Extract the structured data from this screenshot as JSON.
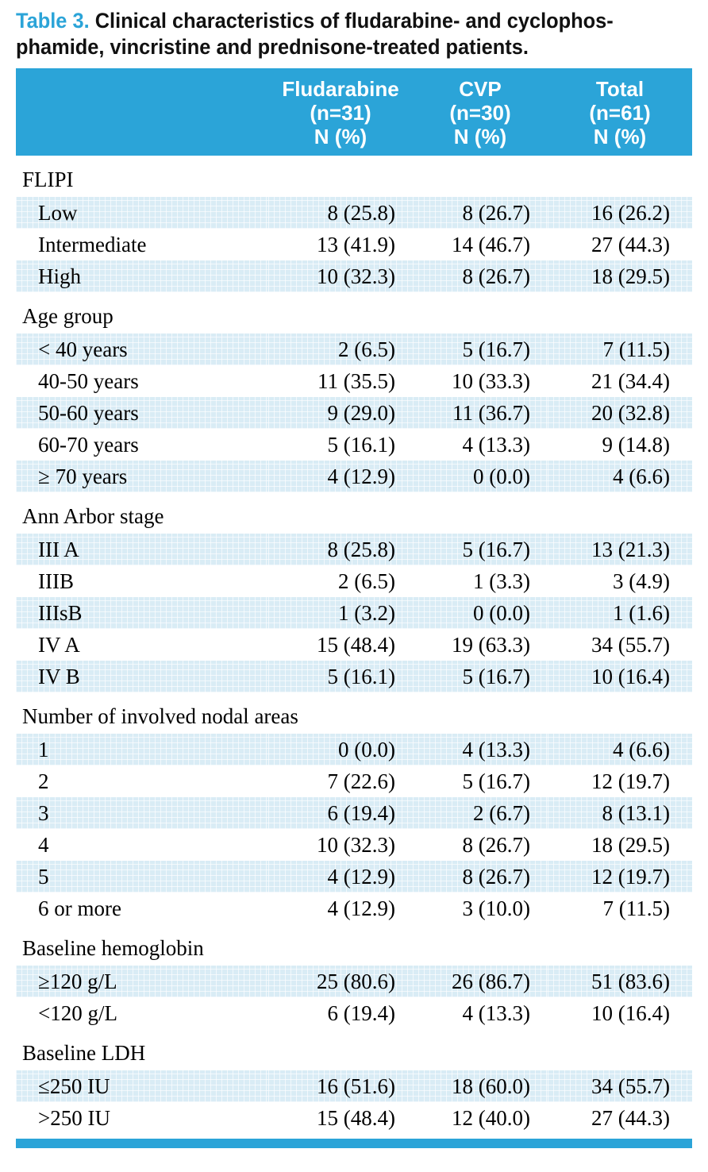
{
  "colors": {
    "accent": "#2ba4d8",
    "shade_blue": "#d9ecf5",
    "header_text": "#ffffff",
    "body_text": "#000000"
  },
  "title": {
    "label": "Table 3.",
    "line1": "Clinical characteristics of fludarabine- and cyclophos-",
    "line2": "phamide, vincristine and prednisone-treated patients."
  },
  "table": {
    "columns": [
      {
        "lines": [
          "Fludarabine",
          "(n=31)",
          "N (%)"
        ]
      },
      {
        "lines": [
          "CVP",
          "(n=30)",
          "N (%)"
        ]
      },
      {
        "lines": [
          "Total",
          "(n=61)",
          "N (%)"
        ]
      }
    ],
    "sections": [
      {
        "header": "FLIPI",
        "rows": [
          {
            "label": "Low",
            "values": [
              "8 (25.8)",
              "8 (26.7)",
              "16 (26.2)"
            ]
          },
          {
            "label": "Intermediate",
            "values": [
              "13 (41.9)",
              "14 (46.7)",
              "27 (44.3)"
            ]
          },
          {
            "label": "High",
            "values": [
              "10 (32.3)",
              "8 (26.7)",
              "18 (29.5)"
            ]
          }
        ]
      },
      {
        "header": "Age group",
        "rows": [
          {
            "label": "< 40 years",
            "values": [
              "2 (6.5)",
              "5 (16.7)",
              "7 (11.5)"
            ]
          },
          {
            "label": "40-50 years",
            "values": [
              "11 (35.5)",
              "10 (33.3)",
              "21 (34.4)"
            ]
          },
          {
            "label": "50-60 years",
            "values": [
              "9 (29.0)",
              "11 (36.7)",
              "20 (32.8)"
            ]
          },
          {
            "label": "60-70 years",
            "values": [
              "5 (16.1)",
              "4 (13.3)",
              "9 (14.8)"
            ]
          },
          {
            "label": "≥ 70 years",
            "values": [
              "4 (12.9)",
              "0 (0.0)",
              "4 (6.6)"
            ]
          }
        ]
      },
      {
        "header": "Ann Arbor stage",
        "rows": [
          {
            "label": "III A",
            "values": [
              "8 (25.8)",
              "5 (16.7)",
              "13 (21.3)"
            ]
          },
          {
            "label": "IIIB",
            "values": [
              "2 (6.5)",
              "1 (3.3)",
              "3 (4.9)"
            ]
          },
          {
            "label": "IIIsB",
            "values": [
              "1 (3.2)",
              "0 (0.0)",
              "1 (1.6)"
            ]
          },
          {
            "label": "IV A",
            "values": [
              "15 (48.4)",
              "19 (63.3)",
              "34 (55.7)"
            ]
          },
          {
            "label": "IV B",
            "values": [
              "5 (16.1)",
              "5 (16.7)",
              "10 (16.4)"
            ]
          }
        ]
      },
      {
        "header": "Number of involved nodal areas",
        "rows": [
          {
            "label": "1",
            "values": [
              "0 (0.0)",
              "4 (13.3)",
              "4 (6.6)"
            ]
          },
          {
            "label": "2",
            "values": [
              "7 (22.6)",
              "5 (16.7)",
              "12 (19.7)"
            ]
          },
          {
            "label": "3",
            "values": [
              "6 (19.4)",
              "2 (6.7)",
              "8 (13.1)"
            ]
          },
          {
            "label": "4",
            "values": [
              "10 (32.3)",
              "8 (26.7)",
              "18 (29.5)"
            ]
          },
          {
            "label": "5",
            "values": [
              "4 (12.9)",
              "8 (26.7)",
              "12 (19.7)"
            ]
          },
          {
            "label": "6 or more",
            "values": [
              "4 (12.9)",
              "3 (10.0)",
              "7 (11.5)"
            ]
          }
        ]
      },
      {
        "header": "Baseline hemoglobin",
        "rows": [
          {
            "label": "≥120 g/L",
            "values": [
              "25 (80.6)",
              "26 (86.7)",
              "51 (83.6)"
            ]
          },
          {
            "label": "<120 g/L",
            "values": [
              "6 (19.4)",
              "4 (13.3)",
              "10 (16.4)"
            ]
          }
        ]
      },
      {
        "header": "Baseline LDH",
        "rows": [
          {
            "label": "≤250 IU",
            "values": [
              "16 (51.6)",
              "18 (60.0)",
              "34 (55.7)"
            ]
          },
          {
            "label": ">250 IU",
            "values": [
              "15 (48.4)",
              "12 (40.0)",
              "27 (44.3)"
            ]
          }
        ]
      }
    ]
  }
}
